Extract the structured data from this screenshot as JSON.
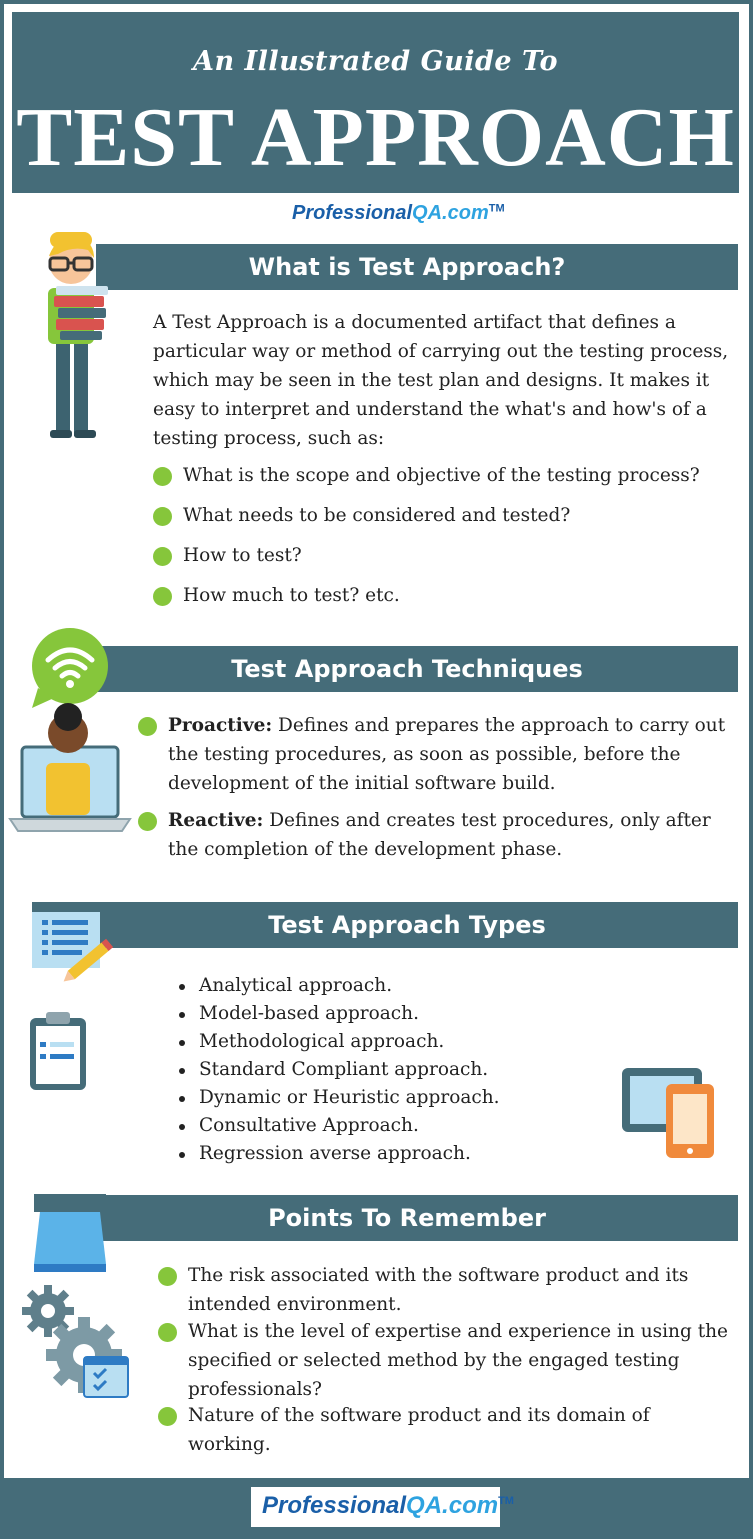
{
  "header": {
    "subtitle": "An Illustrated Guide To",
    "title": "TEST APPROACH"
  },
  "logo": {
    "part1": "Professional",
    "part2": "QA.com",
    "tm": "TM"
  },
  "section1": {
    "heading": "What is Test Approach?",
    "paragraph": "A Test Approach is a documented artifact that defines a particular way or method of carrying out the testing process, which may be seen in the test plan and designs. It makes it easy to interpret and understand the what's and how's of a testing process, such as:",
    "bullets": [
      "What is the scope and objective of the testing process?",
      "What needs to be considered and tested?",
      "How to test?",
      "How much to test? etc."
    ]
  },
  "section2": {
    "heading": "Test Approach Techniques",
    "items": [
      {
        "term": "Proactive:",
        "desc": " Defines and prepares the approach to carry out the testing procedures, as soon as possible, before the development of the initial software build."
      },
      {
        "term": "Reactive:",
        "desc": " Defines and creates test procedures, only after the completion of the development phase."
      }
    ]
  },
  "section3": {
    "heading": "Test Approach Types",
    "items": [
      "Analytical approach.",
      "Model-based approach.",
      "Methodological approach.",
      "Standard Compliant approach.",
      "Dynamic or Heuristic approach.",
      "Consultative Approach.",
      "Regression averse approach."
    ]
  },
  "section4": {
    "heading": "Points To Remember",
    "items": [
      "The risk associated with the software product and its intended environment.",
      "What is the level of expertise and experience in using the specified or selected method by the engaged testing professionals?",
      "Nature of the software product and its domain of working."
    ]
  },
  "colors": {
    "bar": "#456c79",
    "bullet": "#86c63b",
    "logo_dark": "#1a5fa8",
    "logo_light": "#2ea3e0"
  },
  "icons": [
    "student-icon",
    "chat-wifi-icon",
    "laptop-person-icon",
    "document-pencil-icon",
    "clipboard-icon",
    "tablet-phone-icon",
    "printer-icon",
    "gears-icon"
  ]
}
